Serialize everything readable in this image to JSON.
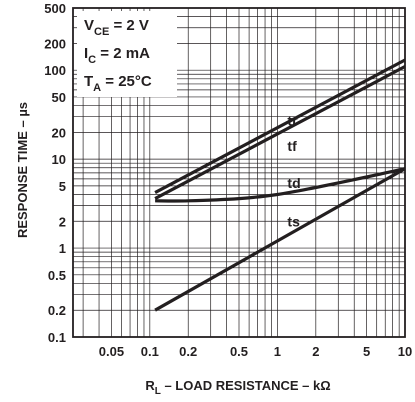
{
  "chart_data": {
    "type": "line",
    "title": "",
    "xlabel": {
      "main": "R",
      "sub": "L",
      "rest": " – LOAD RESISTANCE – kΩ"
    },
    "ylabel": "RESPONSE TIME – µs",
    "xscale": "log",
    "yscale": "log",
    "xlim": [
      0.025,
      10
    ],
    "ylim": [
      0.1,
      500
    ],
    "grid": true,
    "x_ticks": [
      {
        "value": 0.05,
        "label": "0.05"
      },
      {
        "value": 0.1,
        "label": "0.1"
      },
      {
        "value": 0.2,
        "label": "0.2"
      },
      {
        "value": 0.5,
        "label": "0.5"
      },
      {
        "value": 1,
        "label": "1"
      },
      {
        "value": 2,
        "label": "2"
      },
      {
        "value": 5,
        "label": "5"
      },
      {
        "value": 10,
        "label": "10"
      }
    ],
    "y_ticks": [
      {
        "value": 0.1,
        "label": "0.1"
      },
      {
        "value": 0.2,
        "label": "0.2"
      },
      {
        "value": 0.5,
        "label": "0.5"
      },
      {
        "value": 1,
        "label": "1"
      },
      {
        "value": 2,
        "label": "2"
      },
      {
        "value": 5,
        "label": "5"
      },
      {
        "value": 10,
        "label": "10"
      },
      {
        "value": 20,
        "label": "20"
      },
      {
        "value": 50,
        "label": "50"
      },
      {
        "value": 100,
        "label": "100"
      },
      {
        "value": 200,
        "label": "200"
      },
      {
        "value": 500,
        "label": "500"
      }
    ],
    "conditions": [
      {
        "main": "V",
        "sub": "CE",
        "rest": " = 2 V"
      },
      {
        "main": "I",
        "sub": "C",
        "rest": " = 2 mA"
      },
      {
        "main": "T",
        "sub": "A",
        "rest": " = 25°C"
      }
    ],
    "series": [
      {
        "name": "tr",
        "label_at": [
          1.0,
          27
        ],
        "x": [
          0.11,
          10
        ],
        "y": [
          4.2,
          130
        ]
      },
      {
        "name": "tf",
        "label_at": [
          1.0,
          14
        ],
        "x": [
          0.11,
          10
        ],
        "y": [
          3.6,
          110
        ]
      },
      {
        "name": "td",
        "label_at": [
          1.0,
          5.4
        ],
        "x": [
          0.11,
          0.2,
          0.5,
          1,
          2,
          5,
          10
        ],
        "y": [
          3.4,
          3.4,
          3.6,
          4.0,
          4.8,
          6.3,
          7.8
        ]
      },
      {
        "name": "ts",
        "label_at": [
          1.0,
          2.0
        ],
        "x": [
          0.11,
          10
        ],
        "y": [
          0.2,
          7.8
        ]
      }
    ]
  }
}
